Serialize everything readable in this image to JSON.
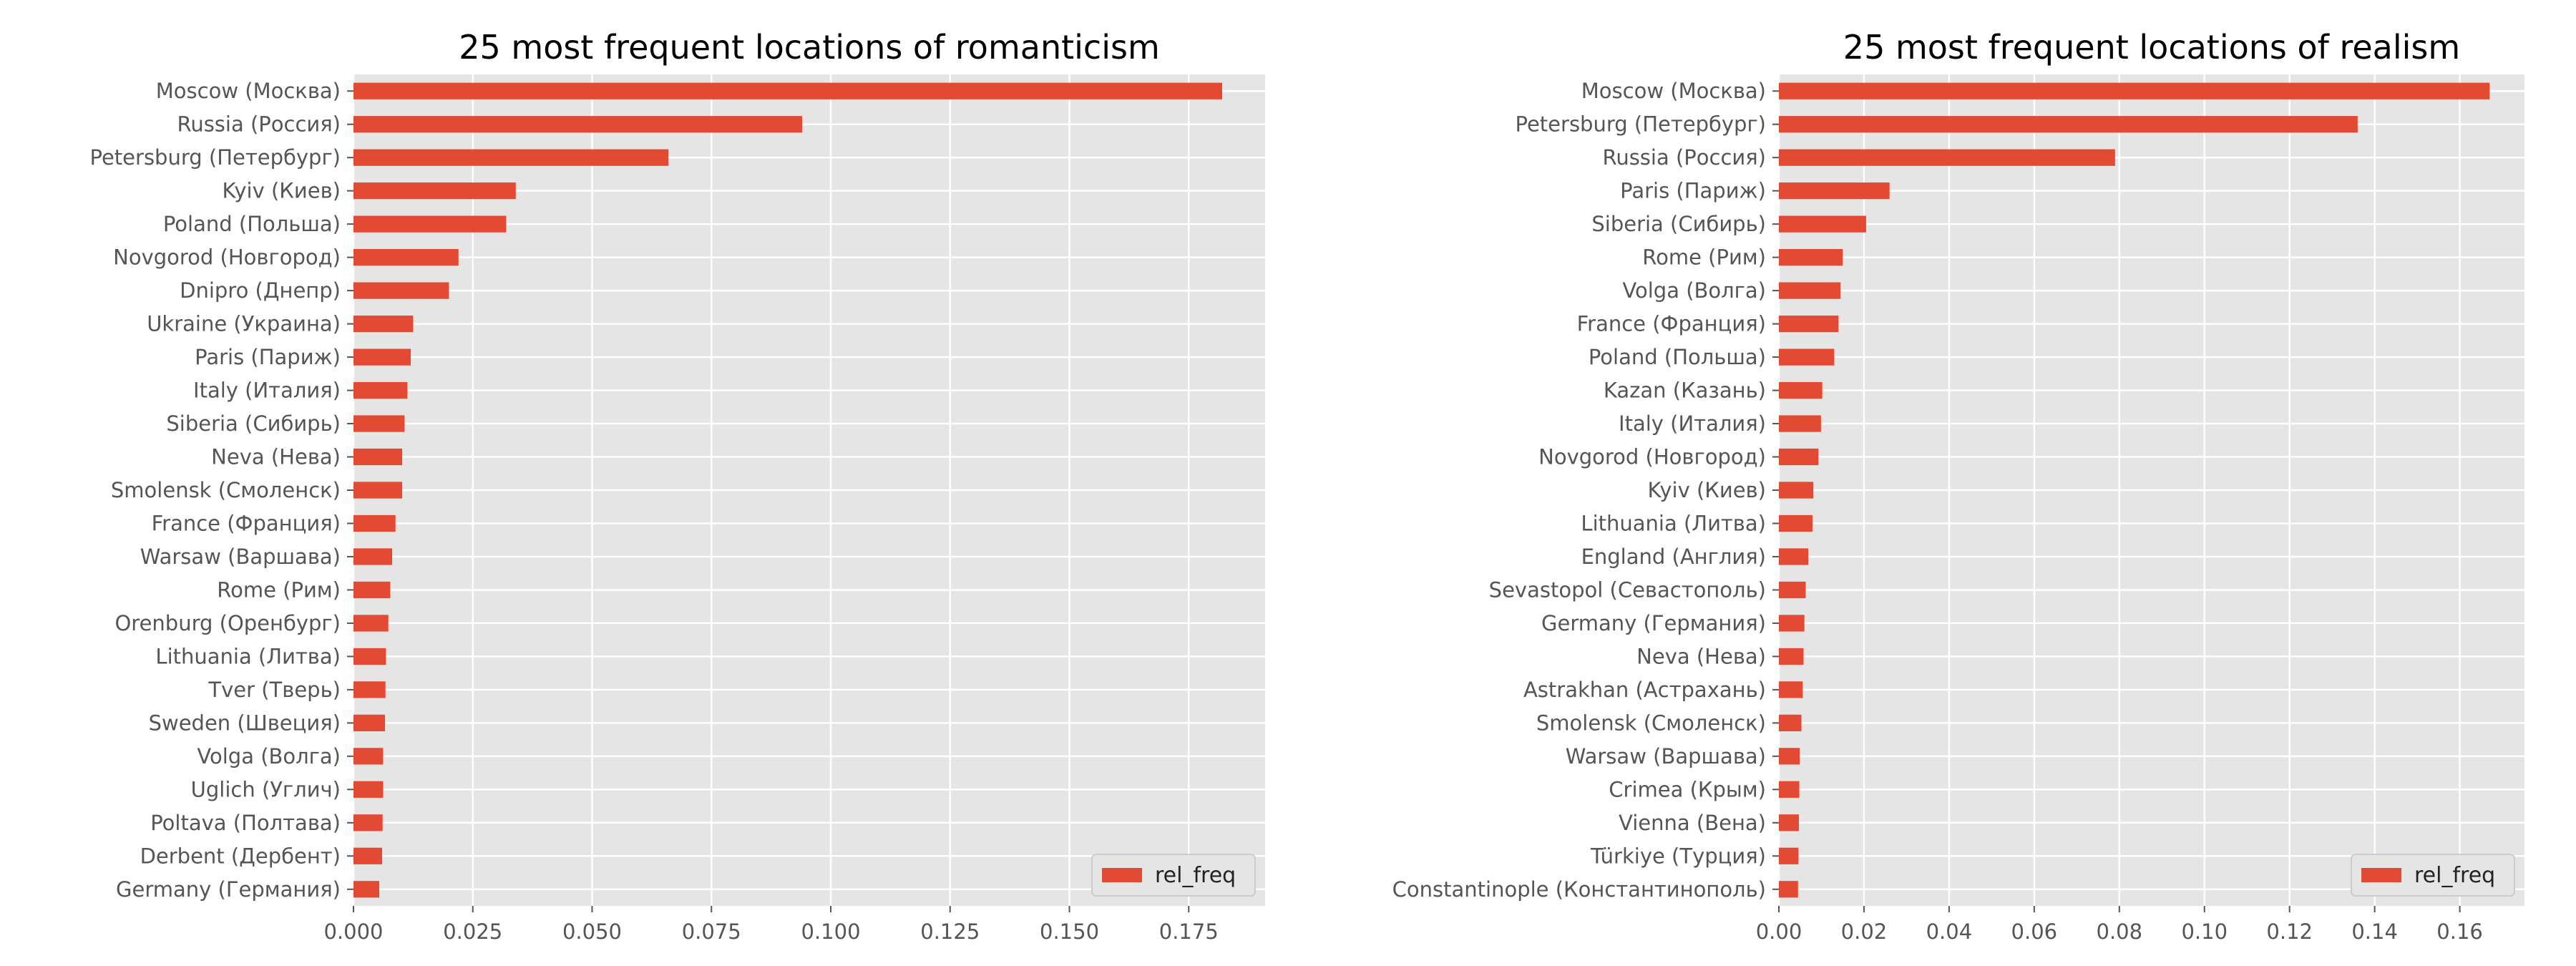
{
  "chart_data": [
    {
      "type": "bar",
      "orientation": "horizontal",
      "title": "25 most frequent locations of romanticism",
      "xlabel": "",
      "ylabel": "",
      "categories": [
        "Moscow (Москва)",
        "Russia (Россия)",
        "Petersburg (Петербург)",
        "Kyiv (Киев)",
        "Poland (Польша)",
        "Novgorod (Новгород)",
        "Dnipro (Днепр)",
        "Ukraine (Украина)",
        "Paris (Париж)",
        "Italy (Италия)",
        "Siberia (Сибирь)",
        "Neva (Нева)",
        "Smolensk (Смоленск)",
        "France (Франция)",
        "Warsaw (Варшава)",
        "Rome (Рим)",
        "Orenburg (Оренбург)",
        "Lithuania (Литва)",
        "Tver (Тверь)",
        "Sweden (Швеция)",
        "Volga (Волга)",
        "Uglich (Углич)",
        "Poltava (Полтава)",
        "Derbent (Дербент)",
        "Germany (Германия)"
      ],
      "series": [
        {
          "name": "rel_freq",
          "values": [
            0.182,
            0.094,
            0.066,
            0.034,
            0.032,
            0.022,
            0.02,
            0.0125,
            0.012,
            0.0113,
            0.0107,
            0.0102,
            0.0102,
            0.0088,
            0.0081,
            0.0077,
            0.0073,
            0.0068,
            0.0067,
            0.0066,
            0.0062,
            0.0062,
            0.0061,
            0.006,
            0.0054
          ]
        }
      ],
      "xlim": [
        0,
        0.191
      ],
      "xticks": [
        "0.000",
        "0.025",
        "0.050",
        "0.075",
        "0.100",
        "0.125",
        "0.150",
        "0.175"
      ],
      "legend": "bottom-right",
      "grid": true
    },
    {
      "type": "bar",
      "orientation": "horizontal",
      "title": "25 most frequent locations of realism",
      "xlabel": "",
      "ylabel": "",
      "categories": [
        "Moscow (Москва)",
        "Petersburg (Петербург)",
        "Russia (Россия)",
        "Paris (Париж)",
        "Siberia (Сибирь)",
        "Rome (Рим)",
        "Volga (Волга)",
        "France (Франция)",
        "Poland (Польша)",
        "Kazan (Казань)",
        "Italy (Италия)",
        "Novgorod (Новгород)",
        "Kyiv (Киев)",
        "Lithuania (Литва)",
        "England (Англия)",
        "Sevastopol (Севастополь)",
        "Germany (Германия)",
        "Neva (Нева)",
        "Astrakhan (Астрахань)",
        "Smolensk (Смоленск)",
        "Warsaw (Варшава)",
        "Crimea (Крым)",
        "Vienna (Вена)",
        "Türkiye (Турция)",
        "Constantinople (Константинополь)"
      ],
      "series": [
        {
          "name": "rel_freq",
          "values": [
            0.167,
            0.136,
            0.079,
            0.026,
            0.0205,
            0.015,
            0.0145,
            0.014,
            0.013,
            0.0102,
            0.0099,
            0.0093,
            0.0081,
            0.0079,
            0.0069,
            0.0063,
            0.006,
            0.0058,
            0.0056,
            0.0053,
            0.0049,
            0.0048,
            0.0047,
            0.0046,
            0.0045
          ]
        }
      ],
      "xlim": [
        0,
        0.1752
      ],
      "xticks": [
        "0.00",
        "0.02",
        "0.04",
        "0.06",
        "0.08",
        "0.10",
        "0.12",
        "0.14",
        "0.16"
      ],
      "legend": "bottom-right",
      "grid": true
    }
  ],
  "colors": {
    "bar": "#e24a33",
    "plot_background": "#e5e5e5",
    "grid": "#ffffff",
    "text": "#555555"
  }
}
